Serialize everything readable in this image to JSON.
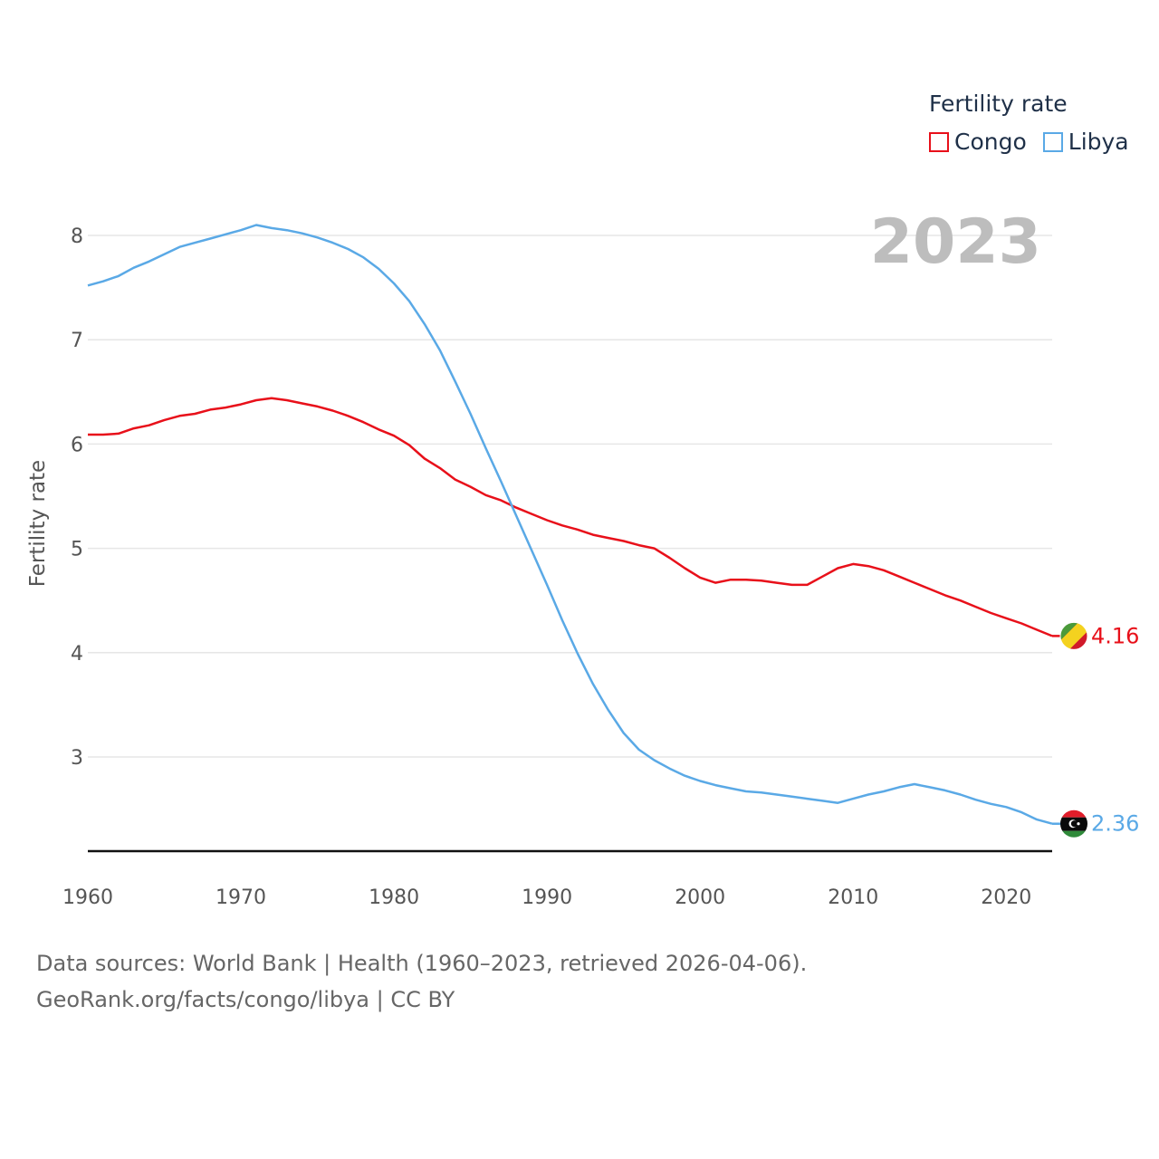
{
  "legend": {
    "title": "Fertility rate",
    "items": [
      {
        "label": "Congo",
        "color": "#e8101a"
      },
      {
        "label": "Libya",
        "color": "#5aa9e6"
      }
    ]
  },
  "year_label": "2023",
  "footer": {
    "line1": "Data sources: World Bank | Health (1960–2023, retrieved 2026-04-06).",
    "line2": "GeoRank.org/facts/congo/libya | CC BY"
  },
  "chart_data": {
    "type": "line",
    "title": "Fertility rate",
    "xlabel": "",
    "ylabel": "Fertility rate",
    "xlim": [
      1960,
      2023
    ],
    "ylim": [
      2.1,
      8.4
    ],
    "xticks": [
      1960,
      1970,
      1980,
      1990,
      2000,
      2010,
      2020
    ],
    "yticks": [
      3,
      4,
      5,
      6,
      7,
      8
    ],
    "grid": true,
    "legend_position": "top-right",
    "x": [
      1960,
      1961,
      1962,
      1963,
      1964,
      1965,
      1966,
      1967,
      1968,
      1969,
      1970,
      1971,
      1972,
      1973,
      1974,
      1975,
      1976,
      1977,
      1978,
      1979,
      1980,
      1981,
      1982,
      1983,
      1984,
      1985,
      1986,
      1987,
      1988,
      1989,
      1990,
      1991,
      1992,
      1993,
      1994,
      1995,
      1996,
      1997,
      1998,
      1999,
      2000,
      2001,
      2002,
      2003,
      2004,
      2005,
      2006,
      2007,
      2008,
      2009,
      2010,
      2011,
      2012,
      2013,
      2014,
      2015,
      2016,
      2017,
      2018,
      2019,
      2020,
      2021,
      2022,
      2023
    ],
    "series": [
      {
        "name": "Congo",
        "color": "#e8101a",
        "end_label": "4.16",
        "values": [
          6.09,
          6.09,
          6.1,
          6.15,
          6.18,
          6.23,
          6.27,
          6.29,
          6.33,
          6.35,
          6.38,
          6.42,
          6.44,
          6.42,
          6.39,
          6.36,
          6.32,
          6.27,
          6.21,
          6.14,
          6.08,
          5.99,
          5.86,
          5.77,
          5.66,
          5.59,
          5.51,
          5.46,
          5.39,
          5.33,
          5.27,
          5.22,
          5.18,
          5.13,
          5.1,
          5.07,
          5.03,
          5.0,
          4.91,
          4.81,
          4.72,
          4.67,
          4.7,
          4.7,
          4.69,
          4.67,
          4.65,
          4.65,
          4.73,
          4.81,
          4.85,
          4.83,
          4.79,
          4.73,
          4.67,
          4.61,
          4.55,
          4.5,
          4.44,
          4.38,
          4.33,
          4.28,
          4.22,
          4.16
        ]
      },
      {
        "name": "Libya",
        "color": "#5aa9e6",
        "end_label": "2.36",
        "values": [
          7.52,
          7.56,
          7.61,
          7.69,
          7.75,
          7.82,
          7.89,
          7.93,
          7.97,
          8.01,
          8.05,
          8.1,
          8.07,
          8.05,
          8.02,
          7.98,
          7.93,
          7.87,
          7.79,
          7.68,
          7.54,
          7.37,
          7.15,
          6.9,
          6.6,
          6.29,
          5.96,
          5.64,
          5.31,
          4.98,
          4.65,
          4.31,
          3.99,
          3.7,
          3.45,
          3.23,
          3.07,
          2.97,
          2.89,
          2.82,
          2.77,
          2.73,
          2.7,
          2.67,
          2.66,
          2.64,
          2.62,
          2.6,
          2.58,
          2.56,
          2.6,
          2.64,
          2.67,
          2.71,
          2.74,
          2.71,
          2.68,
          2.64,
          2.59,
          2.55,
          2.52,
          2.47,
          2.4,
          2.36
        ]
      }
    ]
  }
}
